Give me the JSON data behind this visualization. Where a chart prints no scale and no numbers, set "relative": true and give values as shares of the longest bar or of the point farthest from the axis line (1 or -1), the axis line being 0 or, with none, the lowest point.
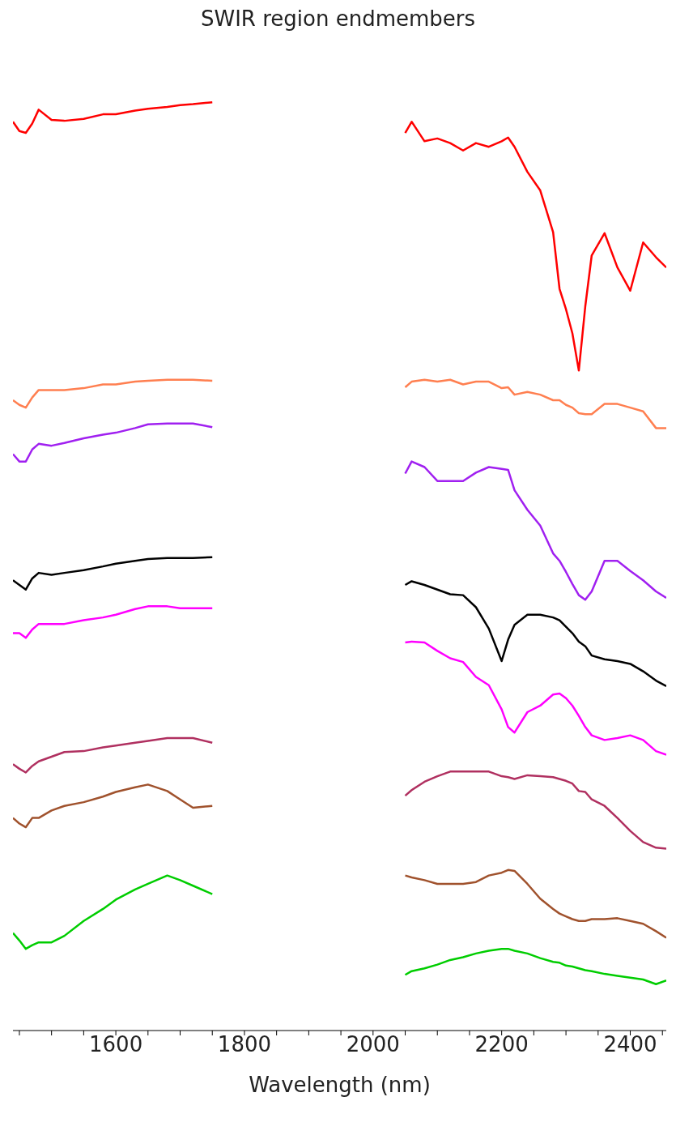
{
  "chart_data": {
    "type": "line",
    "title": "SWIR region endmembers",
    "xlabel": "Wavelength (nm)",
    "relative": true,
    "x": [
      1440,
      1450,
      1460,
      1470,
      1480,
      1500,
      1520,
      1550,
      1580,
      1600,
      1630,
      1650,
      1680,
      1700,
      1720,
      1750,
      1900,
      2050,
      2060,
      2080,
      2100,
      2120,
      2140,
      2160,
      2180,
      2200,
      2210,
      2220,
      2240,
      2260,
      2280,
      2290,
      2300,
      2310,
      2320,
      2330,
      2340,
      2360,
      2380,
      2400,
      2420,
      2440,
      2456
    ],
    "xlim": [
      1440,
      2456
    ],
    "xticks": [
      {
        "value": 1450,
        "label": null
      },
      {
        "value": 1500,
        "label": null
      },
      {
        "value": 1550,
        "label": null
      },
      1600,
      {
        "value": 1650,
        "label": null
      },
      {
        "value": 1700,
        "label": null
      },
      {
        "value": 1750,
        "label": null
      },
      1800,
      {
        "value": 1850,
        "label": null
      },
      {
        "value": 1900,
        "label": null
      },
      {
        "value": 1950,
        "label": null
      },
      2000,
      {
        "value": 2050,
        "label": null
      },
      {
        "value": 2100,
        "label": null
      },
      {
        "value": 2150,
        "label": null
      },
      2200,
      {
        "value": 2250,
        "label": null
      },
      {
        "value": 2300,
        "label": null
      },
      {
        "value": 2350,
        "label": null
      },
      2400,
      {
        "value": 2450,
        "label": null
      }
    ],
    "marker": "none",
    "line_style": "solid",
    "series": [
      {
        "color": "#ff0000",
        "values": [
          0.979,
          0.969,
          0.967,
          0.977,
          0.992,
          0.981,
          0.98,
          0.982,
          0.987,
          0.987,
          0.991,
          0.993,
          0.995,
          0.997,
          0.998,
          1,
          null,
          0.967,
          0.979,
          0.958,
          0.961,
          0.956,
          0.948,
          0.956,
          0.952,
          0.958,
          0.962,
          0.952,
          0.925,
          0.905,
          0.86,
          0.799,
          0.777,
          0.751,
          0.711,
          0.78,
          0.835,
          0.859,
          0.822,
          0.797,
          0.849,
          0.833,
          0.822
        ]
      },
      {
        "color": "#ff7f50",
        "values": [
          0.679,
          0.674,
          0.671,
          0.682,
          0.69,
          0.69,
          0.69,
          0.692,
          0.696,
          0.696,
          0.699,
          0.7,
          0.701,
          0.701,
          0.701,
          0.7,
          null,
          0.693,
          0.699,
          0.701,
          0.699,
          0.701,
          0.696,
          0.699,
          0.699,
          0.692,
          0.693,
          0.685,
          0.688,
          0.685,
          0.679,
          0.679,
          0.674,
          0.671,
          0.665,
          0.664,
          0.664,
          0.675,
          0.675,
          0.671,
          0.667,
          0.649,
          0.649
        ]
      },
      {
        "color": "#a020f0",
        "values": [
          0.621,
          0.613,
          0.613,
          0.626,
          0.632,
          0.63,
          0.633,
          0.638,
          0.642,
          0.644,
          0.649,
          0.653,
          0.654,
          0.654,
          0.654,
          0.65,
          null,
          0.6,
          0.613,
          0.607,
          0.592,
          0.592,
          0.592,
          0.601,
          0.607,
          0.605,
          0.604,
          0.582,
          0.561,
          0.544,
          0.514,
          0.506,
          0.494,
          0.481,
          0.469,
          0.464,
          0.473,
          0.506,
          0.506,
          0.495,
          0.485,
          0.473,
          0.466
        ]
      },
      {
        "color": "#000000",
        "values": [
          0.485,
          0.48,
          0.475,
          0.487,
          0.493,
          0.491,
          0.493,
          0.496,
          0.5,
          0.503,
          0.506,
          0.508,
          0.509,
          0.509,
          0.509,
          0.51,
          null,
          0.48,
          0.484,
          0.48,
          0.475,
          0.47,
          0.469,
          0.456,
          0.433,
          0.398,
          0.421,
          0.437,
          0.448,
          0.448,
          0.445,
          0.442,
          0.435,
          0.428,
          0.419,
          0.414,
          0.404,
          0.4,
          0.398,
          0.395,
          0.387,
          0.377,
          0.371
        ]
      },
      {
        "color": "#ff00ff",
        "values": [
          0.428,
          0.428,
          0.423,
          0.432,
          0.438,
          0.438,
          0.438,
          0.442,
          0.445,
          0.448,
          0.454,
          0.457,
          0.457,
          0.455,
          0.455,
          0.455,
          null,
          0.418,
          0.419,
          0.418,
          0.409,
          0.401,
          0.397,
          0.381,
          0.372,
          0.346,
          0.327,
          0.321,
          0.343,
          0.35,
          0.362,
          0.363,
          0.358,
          0.35,
          0.339,
          0.327,
          0.318,
          0.313,
          0.315,
          0.318,
          0.313,
          0.301,
          0.297
        ]
      },
      {
        "color": "#b03060",
        "values": [
          0.287,
          0.282,
          0.278,
          0.285,
          0.29,
          0.295,
          0.3,
          0.301,
          0.305,
          0.307,
          0.31,
          0.312,
          0.315,
          0.315,
          0.315,
          0.31,
          null,
          0.253,
          0.259,
          0.268,
          0.274,
          0.279,
          0.279,
          0.279,
          0.279,
          0.274,
          0.273,
          0.271,
          0.275,
          0.274,
          0.273,
          0.271,
          0.269,
          0.266,
          0.258,
          0.257,
          0.249,
          0.242,
          0.229,
          0.215,
          0.203,
          0.197,
          0.196
        ]
      },
      {
        "color": "#a0522d",
        "values": [
          0.229,
          0.223,
          0.219,
          0.229,
          0.229,
          0.237,
          0.242,
          0.246,
          0.252,
          0.257,
          0.262,
          0.265,
          0.258,
          0.249,
          0.24,
          0.242,
          null,
          0.167,
          0.165,
          0.162,
          0.158,
          0.158,
          0.158,
          0.16,
          0.167,
          0.17,
          0.173,
          0.172,
          0.158,
          0.142,
          0.131,
          0.126,
          0.123,
          0.12,
          0.118,
          0.118,
          0.12,
          0.12,
          0.121,
          0.118,
          0.115,
          0.107,
          0.1
        ]
      },
      {
        "color": "#00cd00",
        "values": [
          0.105,
          0.097,
          0.088,
          0.092,
          0.095,
          0.095,
          0.102,
          0.118,
          0.131,
          0.141,
          0.152,
          0.158,
          0.167,
          0.162,
          0.156,
          0.147,
          null,
          0.06,
          0.064,
          0.067,
          0.071,
          0.076,
          0.079,
          0.083,
          0.086,
          0.088,
          0.088,
          0.086,
          0.083,
          0.078,
          0.074,
          0.073,
          0.07,
          0.069,
          0.067,
          0.065,
          0.064,
          0.061,
          0.059,
          0.057,
          0.055,
          0.05,
          0.054
        ]
      }
    ]
  }
}
